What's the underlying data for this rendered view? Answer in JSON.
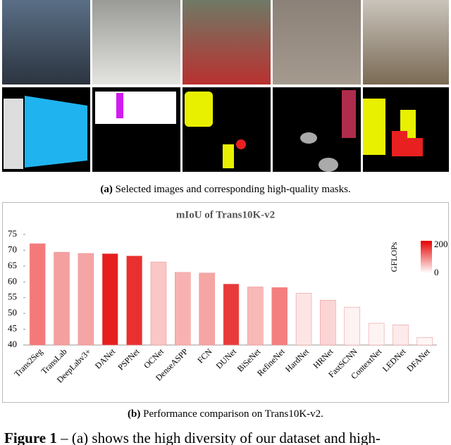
{
  "caption_a": {
    "label": "(a)",
    "text": "Selected images and corresponding high-quality masks."
  },
  "chart_data": {
    "type": "bar",
    "title": "mIoU of Trans10K-v2",
    "categories": [
      "Trans2Seg",
      "TransLab",
      "DeepLabv3+",
      "DANet",
      "PSPNet",
      "OCNet",
      "DenseASPP",
      "FCN",
      "DUNet",
      "BiSeNet",
      "RefineNet",
      "HardNet",
      "HRNet",
      "FastSCNN",
      "ContextNet",
      "LEDNet",
      "DFANet"
    ],
    "values": [
      72.1,
      69.4,
      69.0,
      68.9,
      68.2,
      66.3,
      63.0,
      62.8,
      59.3,
      58.4,
      58.2,
      56.4,
      54.2,
      52.0,
      46.9,
      46.4,
      42.4
    ],
    "colors": [
      "#f47a7a",
      "#f5a0a0",
      "#f5a5a5",
      "#e61e1e",
      "#e83030",
      "#fbc6c6",
      "#f8b2b2",
      "#f6a5a5",
      "#e83a3a",
      "#f8b9b9",
      "#f47f7f",
      "#fde5e5",
      "#fbd5d5",
      "#fef2f2",
      "#fef3f3",
      "#fdeaea",
      "#fff6f6"
    ],
    "ylim": [
      40,
      75
    ],
    "yticks": [
      40,
      45,
      50,
      55,
      60,
      65,
      70,
      75
    ],
    "colorbar_label": "GFLOPs",
    "colorbar_ticks": [
      0,
      200
    ],
    "colorbar_colors": [
      "#ffffff",
      "#e60000"
    ]
  },
  "caption_b": {
    "label": "(b)",
    "text": "Performance comparison on Trans10K-v2."
  },
  "figure_caption": {
    "label": "Figure 1",
    "text": "– (a) shows the high diversity of our dataset and high-"
  }
}
